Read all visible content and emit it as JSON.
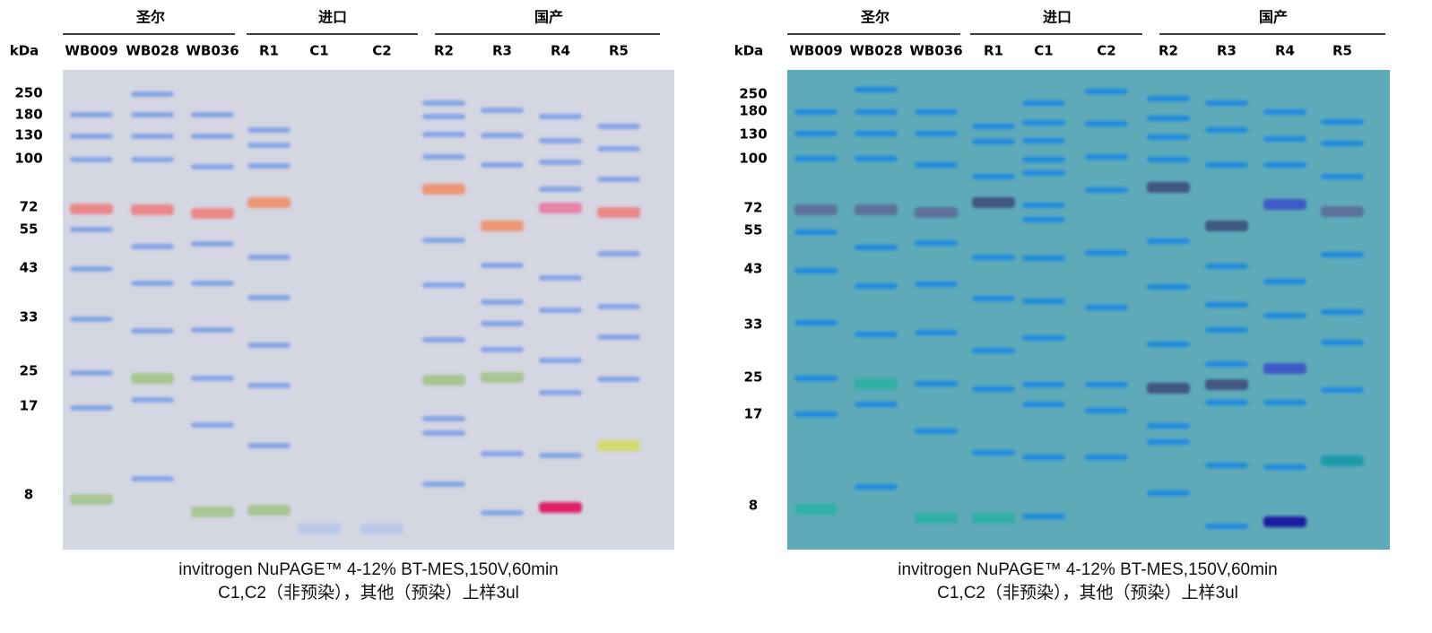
{
  "panels": [
    {
      "groups": [
        "圣尔",
        "进口",
        "国产"
      ],
      "lanes": [
        "WB009",
        "WB028",
        "WB036",
        "R1",
        "C1",
        "C2",
        "R2",
        "R3",
        "R4",
        "R5"
      ],
      "unit": "kDa",
      "markers": [
        "250",
        "180",
        "130",
        "100",
        "72",
        "55",
        "43",
        "33",
        "25",
        "17",
        "8"
      ],
      "caption": [
        "invitrogen NuPAGE™ 4-12% BT-MES,150V,60min",
        "C1,C2（非预染），其他（预染）上样3ul"
      ]
    },
    {
      "groups": [
        "圣尔",
        "进口",
        "国产"
      ],
      "lanes": [
        "WB009",
        "WB028",
        "WB036",
        "R1",
        "C1",
        "C2",
        "R2",
        "R3",
        "R4",
        "R5"
      ],
      "unit": "kDa",
      "markers": [
        "250",
        "180",
        "130",
        "100",
        "72",
        "55",
        "43",
        "33",
        "25",
        "17",
        "8"
      ],
      "caption": [
        "invitrogen NuPAGE™ 4-12% BT-MES,150V,60min",
        "C1,C2（非预染），其他（预染）上样3ul"
      ]
    }
  ]
}
